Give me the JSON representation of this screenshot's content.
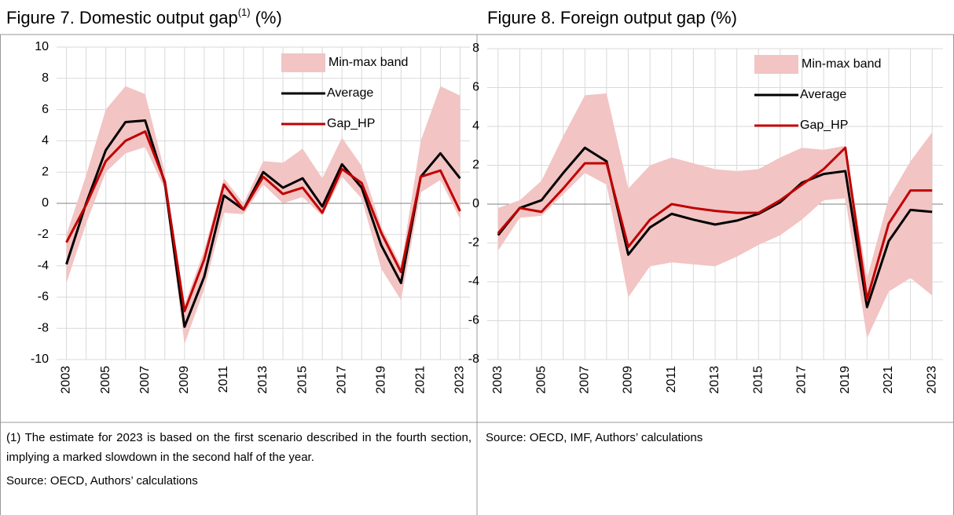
{
  "chart_data": [
    {
      "type": "band-line",
      "title": "Figure 7. Domestic output gap",
      "title_superscript": "(1)",
      "title_suffix": "(%)",
      "x": [
        2003,
        2004,
        2005,
        2006,
        2007,
        2008,
        2009,
        2010,
        2011,
        2012,
        2013,
        2014,
        2015,
        2016,
        2017,
        2018,
        2019,
        2020,
        2021,
        2022,
        2023
      ],
      "xlim": [
        2002.5,
        2023.5
      ],
      "xticks": [
        2003,
        2005,
        2007,
        2009,
        2011,
        2013,
        2015,
        2017,
        2019,
        2021,
        2023
      ],
      "ylim": [
        -10,
        10
      ],
      "yticks": [
        -10,
        -8,
        -6,
        -4,
        -2,
        0,
        2,
        4,
        6,
        8,
        10
      ],
      "grid": true,
      "legend": "top-right",
      "band": {
        "name": "Min-max band",
        "color": "#f2c4c4",
        "lower": [
          -5.1,
          -1.3,
          2.0,
          3.2,
          3.6,
          0.9,
          -9.0,
          -5.5,
          -0.6,
          -0.7,
          1.2,
          0.0,
          0.4,
          -0.8,
          1.7,
          0.3,
          -4.2,
          -6.2,
          0.7,
          1.5,
          -1.0
        ],
        "upper": [
          -2.0,
          1.8,
          6.0,
          7.5,
          7.0,
          2.0,
          -6.5,
          -3.0,
          1.6,
          0.0,
          2.7,
          2.6,
          3.5,
          1.6,
          4.2,
          2.4,
          -1.5,
          -4.0,
          4.0,
          7.5,
          6.9
        ]
      },
      "series": [
        {
          "name": "Average",
          "color": "#000000",
          "values": [
            -3.9,
            0.0,
            3.4,
            5.2,
            5.3,
            1.3,
            -7.9,
            -4.7,
            0.5,
            -0.4,
            2.0,
            1.0,
            1.6,
            -0.2,
            2.5,
            1.0,
            -2.7,
            -5.1,
            1.7,
            3.2,
            1.6
          ]
        },
        {
          "name": "Gap_HP",
          "color": "#c00000",
          "values": [
            -2.5,
            -0.1,
            2.7,
            4.0,
            4.6,
            1.4,
            -6.9,
            -3.6,
            1.2,
            -0.4,
            1.7,
            0.6,
            1.0,
            -0.6,
            2.2,
            1.3,
            -1.9,
            -4.4,
            1.7,
            2.1,
            -0.5
          ]
        }
      ],
      "notes": [
        "(1) The estimate for 2023 is based on the first scenario described in the fourth section, implying a marked slowdown in the second half of the year.",
        "Source: OECD, Authors’ calculations"
      ]
    },
    {
      "type": "band-line",
      "title": "Figure 8. Foreign output gap (%)",
      "x": [
        2003,
        2004,
        2005,
        2006,
        2007,
        2008,
        2009,
        2010,
        2011,
        2012,
        2013,
        2014,
        2015,
        2016,
        2017,
        2018,
        2019,
        2020,
        2021,
        2022,
        2023
      ],
      "xlim": [
        2002.5,
        2023.5
      ],
      "xticks": [
        2003,
        2005,
        2007,
        2009,
        2011,
        2013,
        2015,
        2017,
        2019,
        2021,
        2023
      ],
      "ylim": [
        -8,
        8
      ],
      "yticks": [
        -8,
        -6,
        -4,
        -2,
        0,
        2,
        4,
        6,
        8
      ],
      "grid": true,
      "legend": "top-right",
      "band": {
        "name": "Min-max band",
        "color": "#f2c4c4",
        "lower": [
          -2.4,
          -0.7,
          -0.6,
          0.5,
          1.6,
          1.0,
          -4.8,
          -3.2,
          -3.0,
          -3.1,
          -3.2,
          -2.7,
          -2.1,
          -1.6,
          -0.8,
          0.2,
          0.3,
          -6.9,
          -4.5,
          -3.8,
          -4.7
        ],
        "upper": [
          -0.2,
          0.2,
          1.2,
          3.5,
          5.6,
          5.7,
          0.8,
          2.0,
          2.4,
          2.1,
          1.8,
          1.7,
          1.8,
          2.4,
          2.9,
          2.8,
          3.0,
          -3.8,
          0.3,
          2.2,
          3.7
        ]
      },
      "series": [
        {
          "name": "Average",
          "color": "#000000",
          "values": [
            -1.6,
            -0.2,
            0.2,
            1.6,
            2.9,
            2.2,
            -2.6,
            -1.2,
            -0.5,
            -0.8,
            -1.05,
            -0.85,
            -0.5,
            0.1,
            1.1,
            1.55,
            1.7,
            -5.3,
            -1.9,
            -0.3,
            -0.4
          ]
        },
        {
          "name": "Gap_HP",
          "color": "#c00000",
          "values": [
            -1.5,
            -0.2,
            -0.4,
            0.8,
            2.1,
            2.1,
            -2.2,
            -0.8,
            0.0,
            -0.2,
            -0.35,
            -0.45,
            -0.45,
            0.2,
            1.0,
            1.8,
            2.9,
            -4.9,
            -1.0,
            0.7,
            0.7
          ]
        }
      ],
      "notes": [
        "Source: OECD, IMF, Authors’ calculations"
      ]
    }
  ]
}
